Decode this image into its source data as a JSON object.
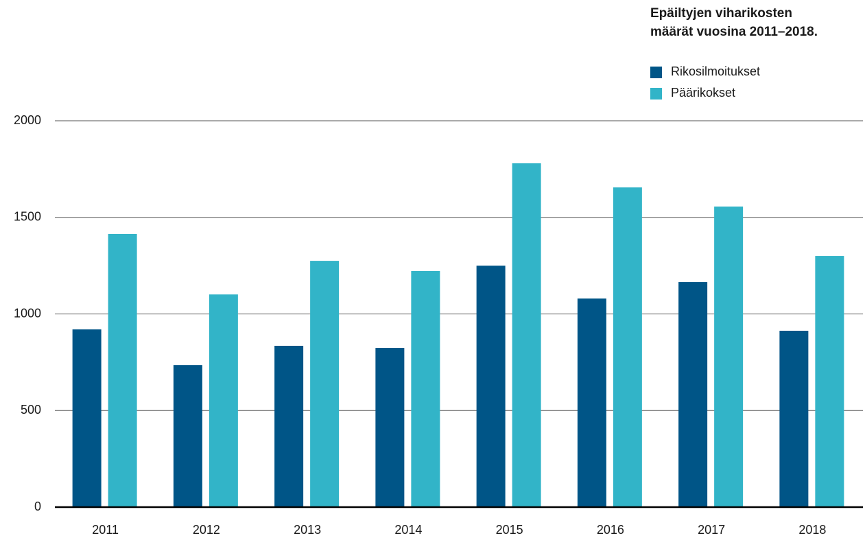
{
  "chart_data": {
    "type": "bar",
    "title": [
      "Epäiltyjen viharikosten",
      "määrät vuosina 2011–2018."
    ],
    "categories": [
      "2011",
      "2012",
      "2013",
      "2014",
      "2015",
      "2016",
      "2017",
      "2018"
    ],
    "series": [
      {
        "name": "Rikosilmoitukset",
        "color": "#005587",
        "values": [
          920,
          735,
          835,
          824,
          1250,
          1080,
          1165,
          913
        ]
      },
      {
        "name": "Päärikokset",
        "color": "#32b4c8",
        "values": [
          1414,
          1101,
          1275,
          1222,
          1780,
          1655,
          1556,
          1300
        ]
      }
    ],
    "ylim": [
      0,
      2000
    ],
    "yticks": [
      0,
      500,
      1000,
      1500,
      2000
    ],
    "grid": true,
    "legend": "top-right"
  }
}
